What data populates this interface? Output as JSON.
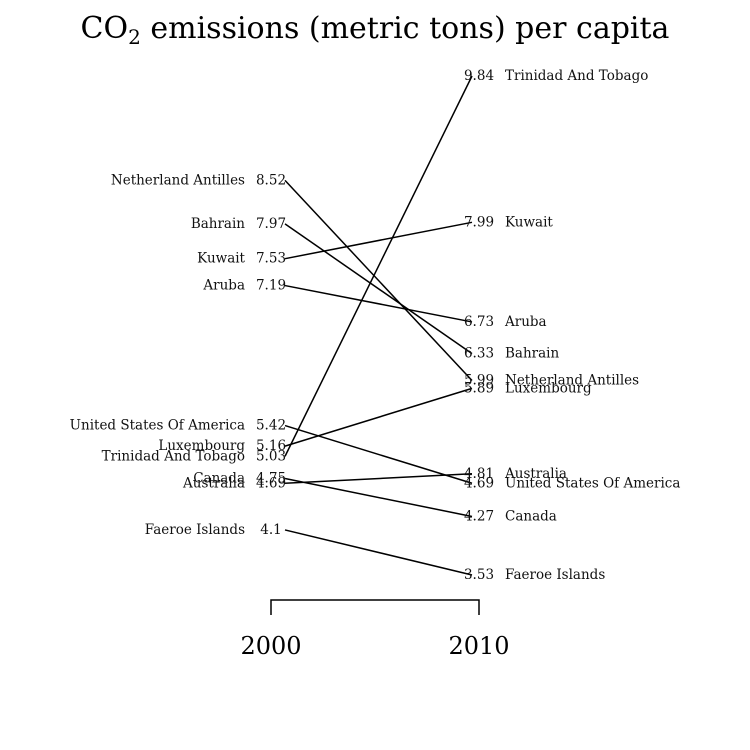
{
  "chart_data": {
    "type": "slope",
    "title_main": "CO",
    "title_sub": "2",
    "title_rest": " emissions (metric tons) per capita",
    "x_categories": [
      "2000",
      "2010"
    ],
    "ylim": [
      3.53,
      9.84
    ],
    "series": [
      {
        "name": "Netherland Antilles",
        "start_label": "8.52",
        "end_label": "5.99",
        "values": [
          8.52,
          5.99
        ]
      },
      {
        "name": "Bahrain",
        "start_label": "7.97",
        "end_label": "6.33",
        "values": [
          7.97,
          6.33
        ]
      },
      {
        "name": "Kuwait",
        "start_label": "7.53",
        "end_label": "7.99",
        "values": [
          7.53,
          7.99
        ]
      },
      {
        "name": "Aruba",
        "start_label": "7.19",
        "end_label": "6.73",
        "values": [
          7.19,
          6.73
        ]
      },
      {
        "name": "United States Of America",
        "start_label": "5.42",
        "end_label": "4.69",
        "values": [
          5.42,
          4.69
        ]
      },
      {
        "name": "Luxembourg",
        "start_label": "5.16",
        "end_label": "5.89",
        "values": [
          5.16,
          5.89
        ]
      },
      {
        "name": "Trinidad And Tobago",
        "start_label": "5.03",
        "end_label": "9.84",
        "values": [
          5.03,
          9.84
        ]
      },
      {
        "name": "Canada",
        "start_label": "4.75",
        "end_label": "4.27",
        "values": [
          4.75,
          4.27
        ]
      },
      {
        "name": "Australia",
        "start_label": "4.69",
        "end_label": "4.81",
        "values": [
          4.69,
          4.81
        ]
      },
      {
        "name": "Faeroe Islands",
        "start_label": "4.1",
        "end_label": "3.53",
        "values": [
          4.1,
          3.53
        ]
      }
    ]
  }
}
